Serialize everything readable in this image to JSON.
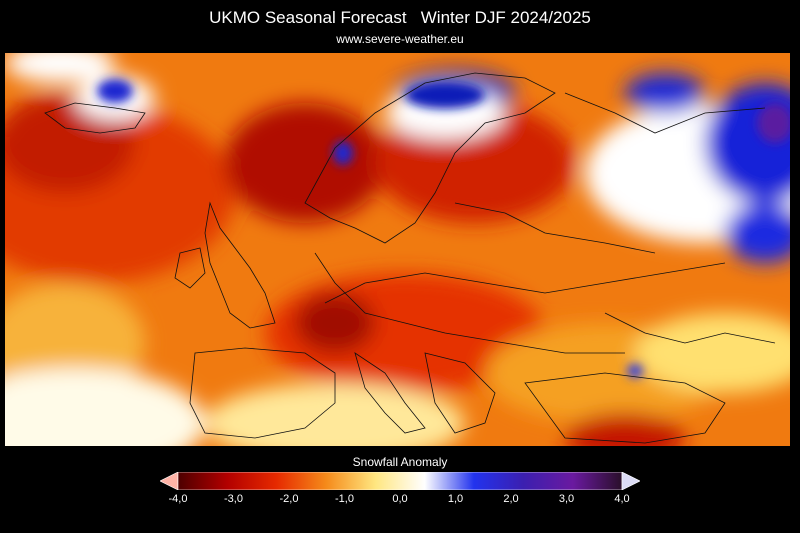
{
  "header": {
    "title_left": "UKMO Seasonal Forecast",
    "title_right": "Winter DJF 2024/2025",
    "subtitle": "www.severe-weather.eu"
  },
  "legend": {
    "title": "Snowfall Anomaly",
    "min": -4.0,
    "max": 4.0,
    "ticks": [
      "-4,0",
      "-3,0",
      "-2,0",
      "-1,0",
      "0,0",
      "1,0",
      "2,0",
      "3,0",
      "4,0"
    ],
    "colors": [
      "#4d0000",
      "#b30000",
      "#e62a00",
      "#f58a1a",
      "#ffe680",
      "#ffffff",
      "#2233ee",
      "#3b1fb0",
      "#6a1aa0",
      "#2a0f2a"
    ],
    "under_color": "#ffb3a7",
    "over_color": "#dcdcf5"
  }
}
